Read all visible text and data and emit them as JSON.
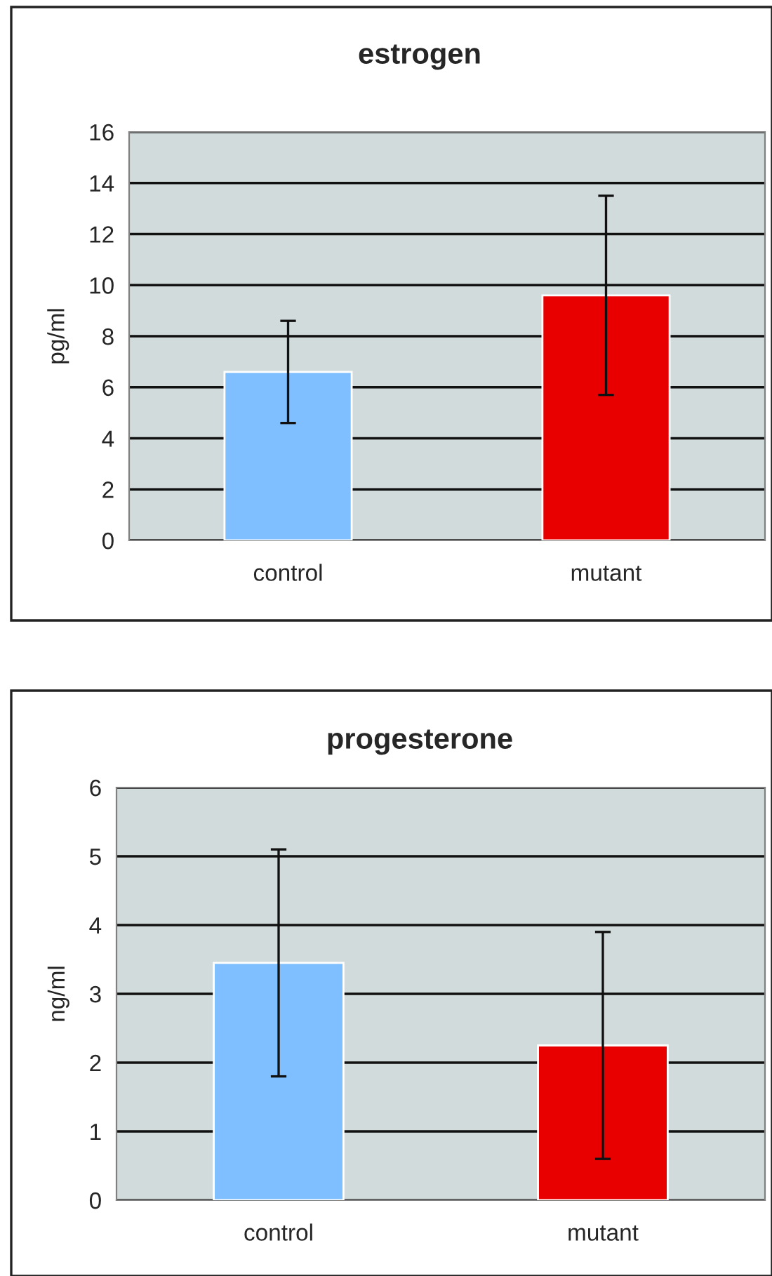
{
  "chart_data": [
    {
      "type": "bar",
      "title": "estrogen",
      "ylabel": "pg/ml",
      "categories": [
        "control",
        "mutant"
      ],
      "values": [
        6.6,
        9.6
      ],
      "colors": [
        "#7fbfff",
        "#e80000"
      ],
      "errors": [
        2.0,
        3.9
      ],
      "ylim": [
        0,
        16
      ],
      "yticks": [
        0,
        2,
        4,
        6,
        8,
        10,
        12,
        14,
        16
      ],
      "grid": "y",
      "legend": false
    },
    {
      "type": "bar",
      "title": "progesterone",
      "ylabel": "ng/ml",
      "categories": [
        "control",
        "mutant"
      ],
      "values": [
        3.45,
        2.25
      ],
      "colors": [
        "#7fbfff",
        "#e80000"
      ],
      "errors": [
        1.65,
        1.65
      ],
      "ylim": [
        0,
        6
      ],
      "yticks": [
        0,
        1,
        2,
        3,
        4,
        5,
        6
      ],
      "grid": "y",
      "legend": false
    }
  ]
}
